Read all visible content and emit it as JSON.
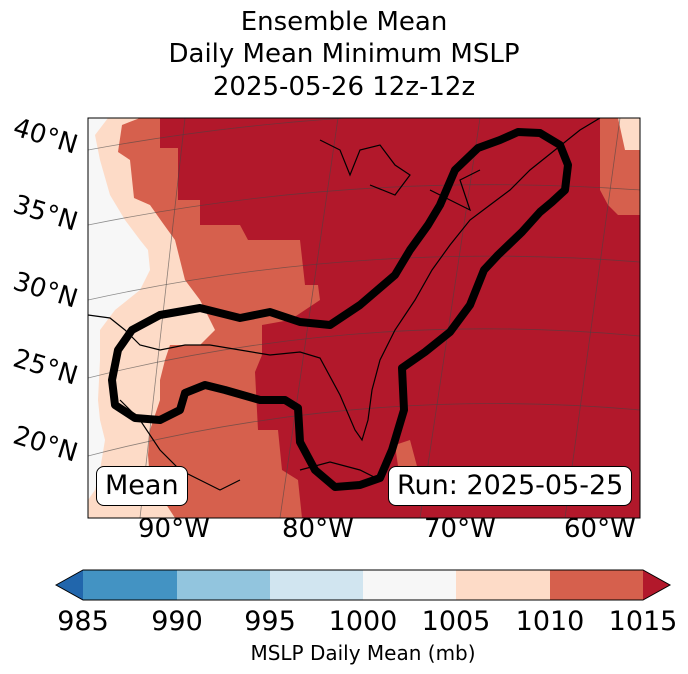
{
  "title": {
    "line1": "Ensemble Mean",
    "line2": "Daily Mean Minimum MSLP",
    "line3": "2025-05-26 12z-12z"
  },
  "map": {
    "lat_labels": [
      "40°N",
      "35°N",
      "30°N",
      "25°N",
      "20°N"
    ],
    "lon_labels": [
      "90°W",
      "80°W",
      "70°W",
      "60°W"
    ],
    "mean_box": "Mean",
    "run_box": "Run: 2025-05-25",
    "colors": {
      "c1000_1005": "#f7f7f7",
      "c1005_1010": "#fddbc7",
      "c1010_1015": "#d6604d",
      "c1015_plus": "#b2182b",
      "contour": "#000000",
      "grid": "#444444"
    }
  },
  "colorbar": {
    "ticks": [
      "985",
      "990",
      "995",
      "1000",
      "1005",
      "1010",
      "1015"
    ],
    "label": "MSLP Daily Mean (mb)",
    "colors": {
      "under": "#2166ac",
      "c985": "#4393c3",
      "c990": "#92c5de",
      "c995": "#d1e5f0",
      "c1000": "#f7f7f7",
      "c1005": "#fddbc7",
      "c1010": "#d6604d",
      "over": "#b2182b"
    }
  }
}
